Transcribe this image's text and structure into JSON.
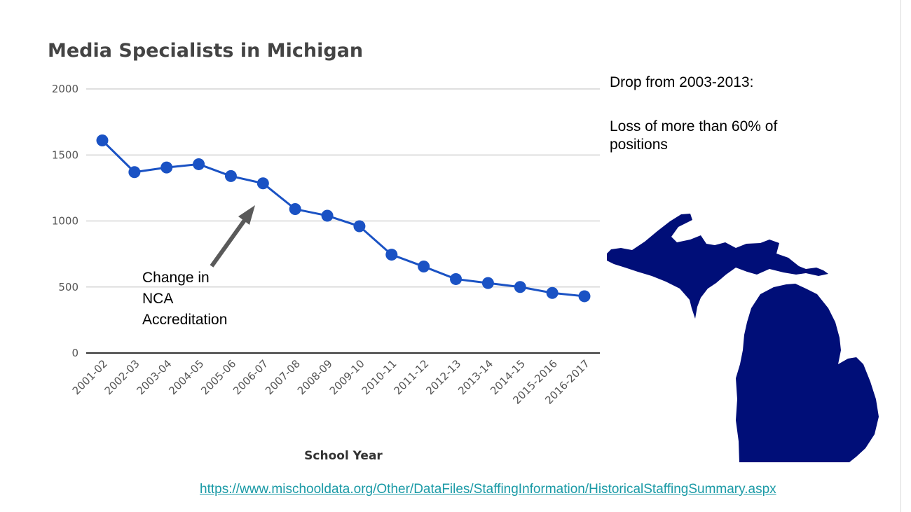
{
  "notes": {
    "drop_heading": "Drop from 2003-2013:",
    "loss_text": "Loss of more than 60% of positions"
  },
  "source_link": "https://www.mischooldata.org/Other/DataFiles/StaffingInformation/HistoricalStaffingSummary.aspx",
  "colors": {
    "line": "#1a52c4",
    "map": "#000e78",
    "arrow": "#5a5a5a"
  },
  "chart_data": {
    "type": "line",
    "title": "Media Specialists in Michigan",
    "xlabel": "School Year",
    "ylabel": "",
    "ylim": [
      0,
      2000
    ],
    "yticks": [
      0,
      500,
      1000,
      1500,
      2000
    ],
    "grid": true,
    "categories": [
      "2001-02",
      "2002-03",
      "2003-04",
      "2004-05",
      "2005-06",
      "2006-07",
      "2007-08",
      "2008-09",
      "2009-10",
      "2010-11",
      "2011-12",
      "2012-13",
      "2013-14",
      "2014-15",
      "2015-2016",
      "2016-2017"
    ],
    "series": [
      {
        "values": [
          1610,
          1370,
          1405,
          1430,
          1340,
          1285,
          1090,
          1040,
          960,
          745,
          655,
          560,
          530,
          500,
          455,
          430
        ]
      }
    ],
    "annotations": [
      {
        "text": [
          "Change in",
          "NCA",
          "Accreditation"
        ],
        "points_to": "2006-07"
      }
    ]
  }
}
